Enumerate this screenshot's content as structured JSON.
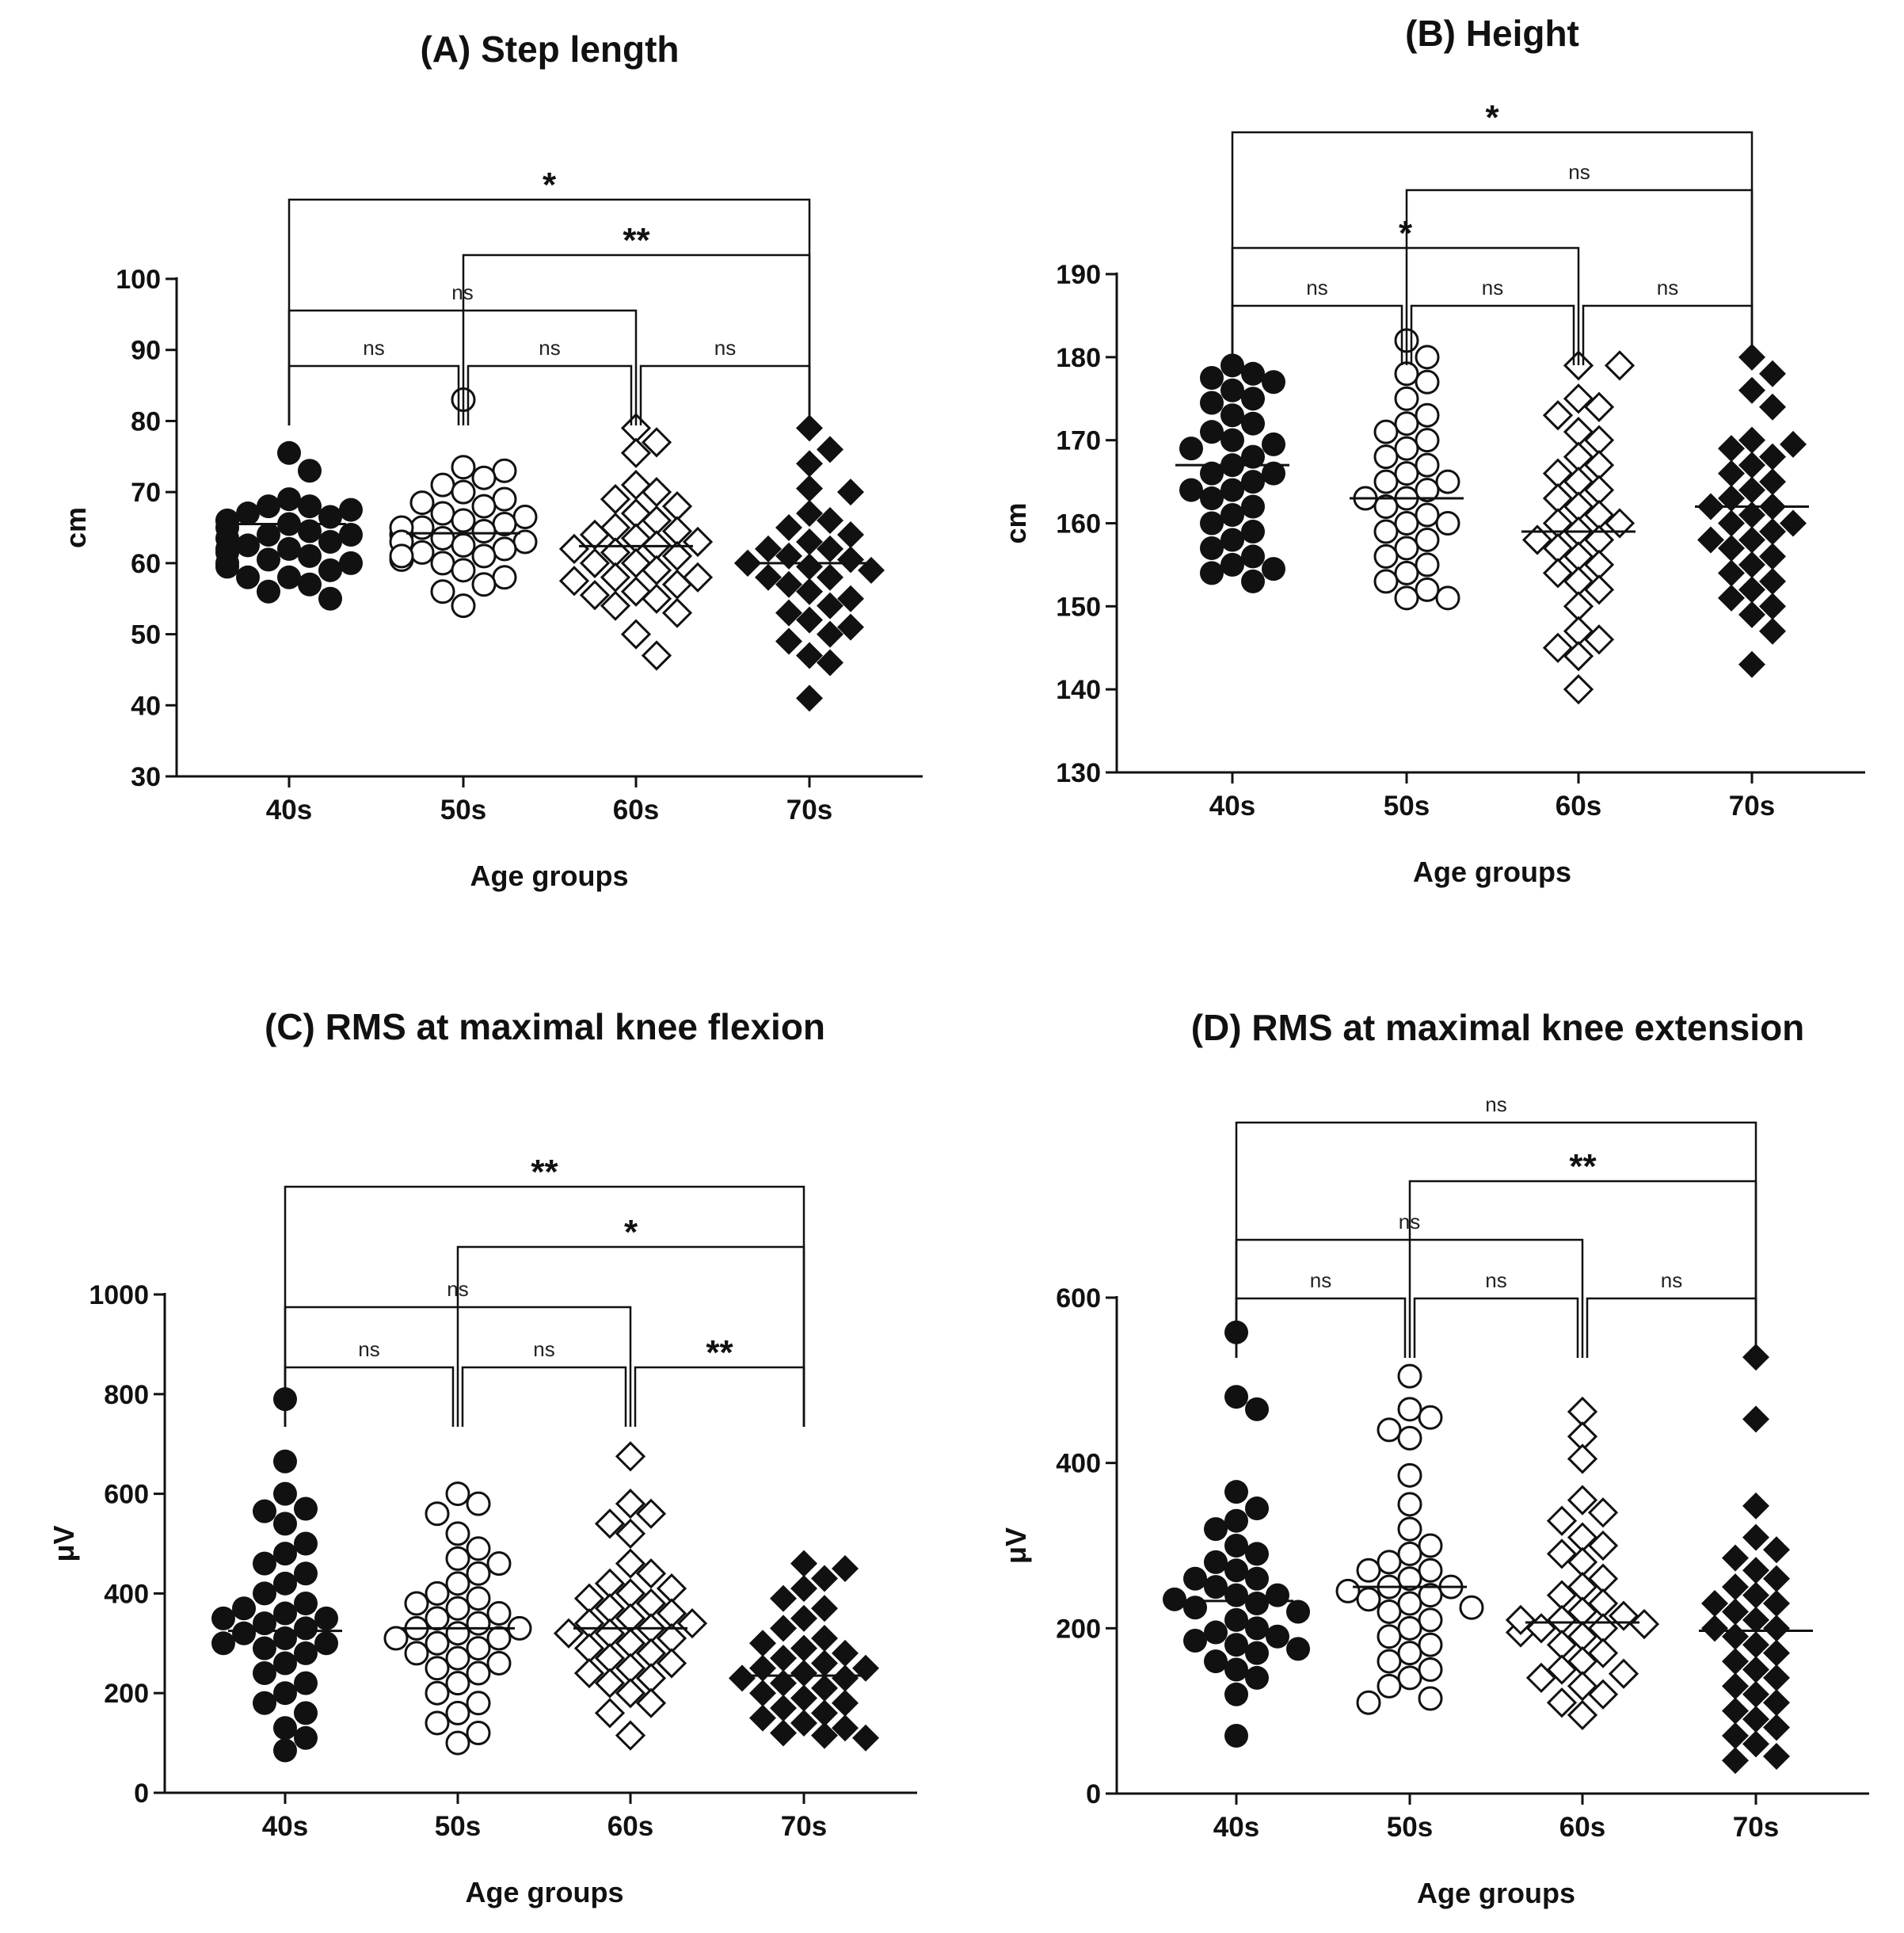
{
  "chart_data": [
    {
      "type": "scatter",
      "title": "(A) Step length",
      "xlabel": "Age groups",
      "ylabel": "cm",
      "ylim": [
        30,
        100
      ],
      "yticks": [
        30,
        40,
        50,
        60,
        70,
        80,
        90,
        100
      ],
      "categories": [
        "40s",
        "50s",
        "60s",
        "70s"
      ],
      "series": [
        {
          "category": "40s",
          "marker": "filled-circle",
          "mean": 65.5,
          "values": [
            75.5,
            73,
            69,
            68,
            67.5,
            67,
            66.5,
            66,
            65.5,
            65,
            64.5,
            64,
            63.5,
            63,
            62.5,
            62,
            61.5,
            61,
            60.5,
            60,
            59.5,
            59,
            58,
            57,
            56,
            55,
            66,
            68,
            64,
            62,
            60,
            58
          ]
        },
        {
          "category": "50s",
          "marker": "open-circle",
          "mean": 64.2,
          "values": [
            83,
            73.5,
            73,
            72,
            71,
            70,
            69,
            68.5,
            68,
            67,
            66.5,
            66,
            65.5,
            65,
            64.5,
            64,
            63.5,
            63,
            62.5,
            62,
            61.5,
            61,
            60.5,
            60,
            59,
            58,
            57,
            56,
            54,
            65,
            63,
            61
          ]
        },
        {
          "category": "60s",
          "marker": "open-diamond",
          "mean": 62.4,
          "values": [
            79,
            77,
            75.5,
            71,
            70,
            69,
            68,
            67,
            66,
            65,
            64.5,
            64,
            63.5,
            63,
            62.5,
            62,
            61.5,
            61,
            60,
            59,
            58,
            57.5,
            57,
            56,
            55.5,
            55,
            54,
            53,
            50,
            47,
            60,
            58
          ]
        },
        {
          "category": "70s",
          "marker": "filled-diamond",
          "mean": 60,
          "values": [
            79,
            76,
            74,
            70.5,
            70,
            67,
            66,
            65,
            64,
            63,
            62,
            61,
            60.5,
            60,
            59.5,
            59,
            58,
            57,
            56,
            55,
            54,
            53,
            52,
            51,
            50,
            49,
            47,
            46,
            41,
            60,
            58,
            62
          ]
        }
      ],
      "comparisons": [
        {
          "groups": [
            "40s",
            "50s"
          ],
          "label": "ns"
        },
        {
          "groups": [
            "50s",
            "60s"
          ],
          "label": "ns"
        },
        {
          "groups": [
            "60s",
            "70s"
          ],
          "label": "ns"
        },
        {
          "groups": [
            "40s",
            "60s"
          ],
          "label": "ns"
        },
        {
          "groups": [
            "50s",
            "70s"
          ],
          "label": "**"
        },
        {
          "groups": [
            "40s",
            "70s"
          ],
          "label": "*"
        }
      ]
    },
    {
      "type": "scatter",
      "title": "(B) Height",
      "xlabel": "Age groups",
      "ylabel": "cm",
      "ylim": [
        130,
        190
      ],
      "yticks": [
        130,
        140,
        150,
        160,
        170,
        180,
        190
      ],
      "categories": [
        "40s",
        "50s",
        "60s",
        "70s"
      ],
      "series": [
        {
          "category": "40s",
          "marker": "filled-circle",
          "mean": 167,
          "values": [
            179,
            178,
            177.5,
            177,
            176,
            175,
            174.5,
            173,
            172,
            171,
            170,
            169.5,
            169,
            168,
            167,
            166,
            165,
            164,
            163,
            162,
            161,
            160,
            159,
            158,
            157,
            156,
            155,
            154.5,
            154,
            153,
            166,
            164
          ]
        },
        {
          "category": "50s",
          "marker": "open-circle",
          "mean": 163,
          "values": [
            182,
            180,
            178,
            177,
            175,
            173,
            172,
            171,
            170,
            169,
            168,
            167,
            166,
            165,
            164,
            163,
            162,
            161,
            160,
            159,
            158,
            157,
            156,
            155,
            154,
            153,
            152,
            151,
            151,
            163,
            160,
            165
          ]
        },
        {
          "category": "60s",
          "marker": "open-diamond",
          "mean": 159,
          "values": [
            179,
            179,
            175,
            174,
            173,
            171,
            170,
            168,
            167,
            166,
            165,
            164,
            163,
            162,
            161,
            160,
            159,
            158,
            157,
            156,
            155,
            154,
            153,
            152,
            150,
            147,
            146,
            145,
            144,
            140,
            158,
            160
          ]
        },
        {
          "category": "70s",
          "marker": "filled-diamond",
          "mean": 162,
          "values": [
            180,
            178,
            176,
            174,
            170,
            169.5,
            169,
            168,
            167,
            166,
            165,
            164,
            163,
            162,
            161,
            160,
            159,
            158,
            157,
            156,
            155,
            154,
            153,
            152,
            151,
            150,
            149,
            147,
            143,
            162,
            160,
            158
          ]
        }
      ],
      "comparisons": [
        {
          "groups": [
            "40s",
            "50s"
          ],
          "label": "ns"
        },
        {
          "groups": [
            "50s",
            "60s"
          ],
          "label": "ns"
        },
        {
          "groups": [
            "60s",
            "70s"
          ],
          "label": "ns"
        },
        {
          "groups": [
            "40s",
            "60s"
          ],
          "label": "*"
        },
        {
          "groups": [
            "50s",
            "70s"
          ],
          "label": "ns"
        },
        {
          "groups": [
            "40s",
            "70s"
          ],
          "label": "*"
        }
      ]
    },
    {
      "type": "scatter",
      "title": "(C) RMS at maximal knee flexion",
      "xlabel": "Age groups",
      "ylabel": "μV",
      "ylim": [
        0,
        1000
      ],
      "yticks": [
        0,
        200,
        400,
        600,
        800,
        1000
      ],
      "categories": [
        "40s",
        "50s",
        "60s",
        "70s"
      ],
      "series": [
        {
          "category": "40s",
          "marker": "filled-circle",
          "mean": 325,
          "values": [
            790,
            665,
            600,
            570,
            565,
            540,
            500,
            480,
            460,
            440,
            420,
            400,
            380,
            370,
            360,
            350,
            340,
            330,
            320,
            310,
            300,
            290,
            280,
            260,
            240,
            220,
            200,
            180,
            160,
            130,
            110,
            85,
            300,
            350
          ]
        },
        {
          "category": "50s",
          "marker": "open-circle",
          "mean": 330,
          "values": [
            600,
            580,
            560,
            520,
            490,
            470,
            460,
            440,
            420,
            400,
            390,
            380,
            370,
            360,
            350,
            340,
            330,
            320,
            310,
            300,
            290,
            280,
            270,
            260,
            250,
            240,
            220,
            200,
            180,
            160,
            140,
            120,
            100,
            330,
            310
          ]
        },
        {
          "category": "60s",
          "marker": "open-diamond",
          "mean": 330,
          "values": [
            675,
            580,
            560,
            540,
            520,
            460,
            440,
            420,
            410,
            400,
            390,
            380,
            370,
            360,
            350,
            340,
            330,
            320,
            310,
            300,
            290,
            280,
            270,
            260,
            250,
            240,
            230,
            220,
            200,
            180,
            160,
            115,
            340,
            320
          ]
        },
        {
          "category": "70s",
          "marker": "filled-diamond",
          "mean": 235,
          "values": [
            460,
            450,
            430,
            410,
            390,
            370,
            350,
            330,
            310,
            300,
            290,
            280,
            270,
            260,
            250,
            240,
            230,
            220,
            210,
            200,
            190,
            180,
            170,
            160,
            150,
            140,
            130,
            120,
            115,
            110,
            250,
            230
          ]
        }
      ],
      "comparisons": [
        {
          "groups": [
            "40s",
            "50s"
          ],
          "label": "ns"
        },
        {
          "groups": [
            "50s",
            "60s"
          ],
          "label": "ns"
        },
        {
          "groups": [
            "60s",
            "70s"
          ],
          "label": "**"
        },
        {
          "groups": [
            "40s",
            "60s"
          ],
          "label": "ns"
        },
        {
          "groups": [
            "50s",
            "70s"
          ],
          "label": "*"
        },
        {
          "groups": [
            "40s",
            "70s"
          ],
          "label": "**"
        }
      ]
    },
    {
      "type": "scatter",
      "title": "(D) RMS at maximal knee extension",
      "xlabel": "Age groups",
      "ylabel": "μV",
      "ylim": [
        0,
        600
      ],
      "yticks": [
        0,
        200,
        400,
        600
      ],
      "categories": [
        "40s",
        "50s",
        "60s",
        "70s"
      ],
      "series": [
        {
          "category": "40s",
          "marker": "filled-circle",
          "mean": 233,
          "values": [
            558,
            480,
            465,
            365,
            345,
            330,
            320,
            300,
            290,
            280,
            270,
            260,
            250,
            240,
            235,
            230,
            225,
            220,
            210,
            200,
            195,
            190,
            185,
            180,
            175,
            170,
            160,
            150,
            140,
            120,
            70,
            240,
            260
          ]
        },
        {
          "category": "50s",
          "marker": "open-circle",
          "mean": 250,
          "values": [
            505,
            465,
            455,
            440,
            430,
            385,
            350,
            320,
            300,
            290,
            280,
            270,
            260,
            250,
            245,
            240,
            235,
            230,
            225,
            220,
            210,
            200,
            190,
            180,
            170,
            160,
            150,
            140,
            130,
            115,
            110,
            250,
            270
          ]
        },
        {
          "category": "60s",
          "marker": "open-diamond",
          "mean": 207,
          "values": [
            462,
            432,
            405,
            355,
            340,
            330,
            310,
            300,
            290,
            280,
            260,
            250,
            240,
            230,
            220,
            215,
            210,
            205,
            200,
            195,
            190,
            180,
            170,
            160,
            150,
            145,
            140,
            130,
            120,
            110,
            95,
            200,
            210
          ]
        },
        {
          "category": "70s",
          "marker": "filled-diamond",
          "mean": 197,
          "values": [
            528,
            453,
            348,
            310,
            295,
            285,
            270,
            260,
            250,
            240,
            230,
            220,
            210,
            200,
            190,
            180,
            170,
            160,
            150,
            140,
            130,
            120,
            110,
            100,
            90,
            80,
            70,
            60,
            45,
            40,
            200,
            230
          ]
        }
      ],
      "comparisons": [
        {
          "groups": [
            "40s",
            "50s"
          ],
          "label": "ns"
        },
        {
          "groups": [
            "50s",
            "60s"
          ],
          "label": "ns"
        },
        {
          "groups": [
            "60s",
            "70s"
          ],
          "label": "ns"
        },
        {
          "groups": [
            "40s",
            "60s"
          ],
          "label": "ns"
        },
        {
          "groups": [
            "50s",
            "70s"
          ],
          "label": "**"
        },
        {
          "groups": [
            "40s",
            "70s"
          ],
          "label": "ns"
        }
      ]
    }
  ]
}
